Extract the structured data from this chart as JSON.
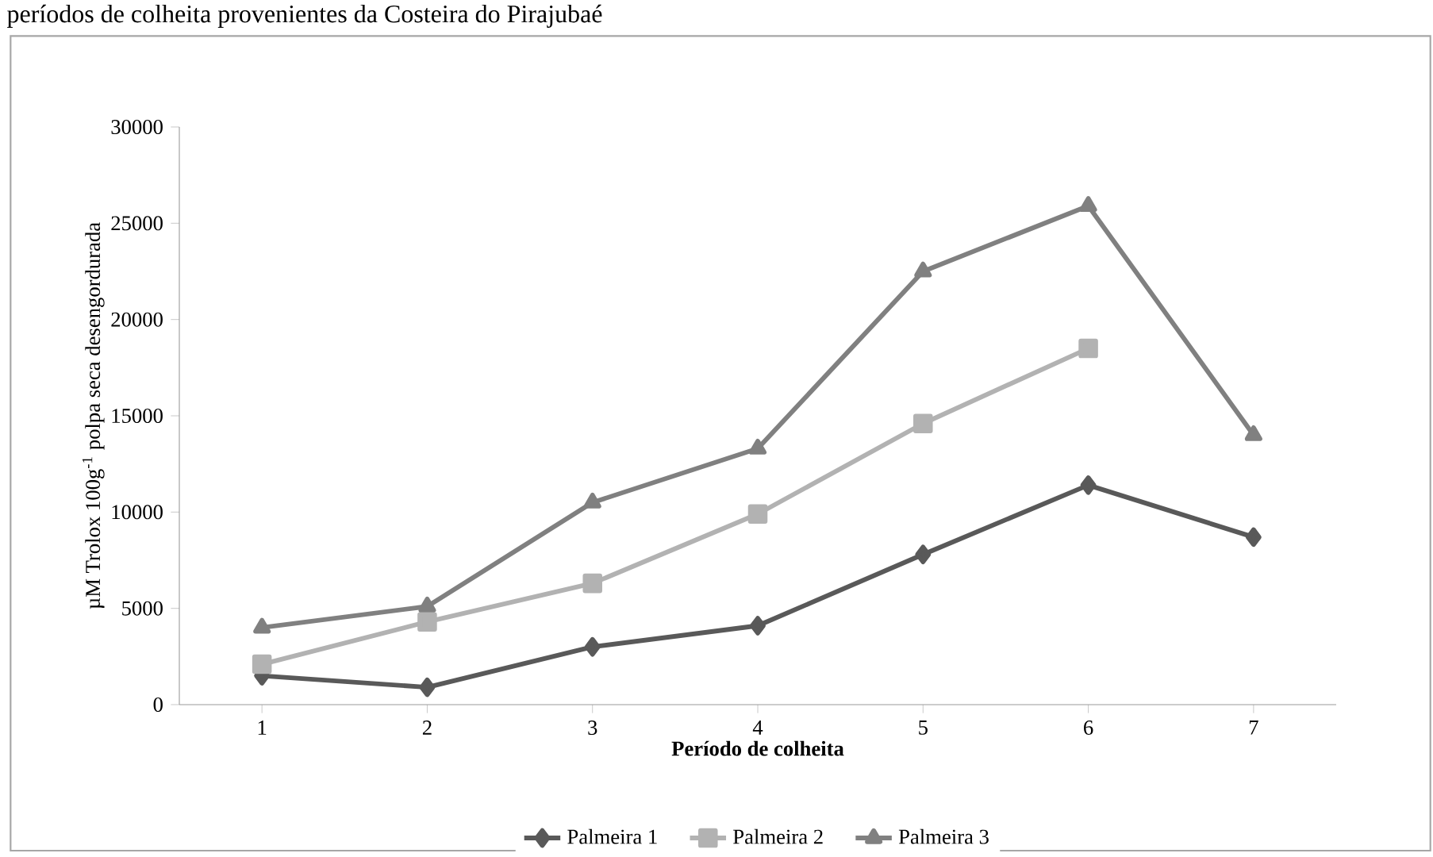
{
  "chart_data": {
    "type": "line",
    "title": "períodos de colheita provenientes da Costeira do Pirajubaé",
    "xlabel": "Período de colheita",
    "ylabel": "µM Trolox 100g$^{-1}$ polpa seca desengordurada",
    "categories": [
      "1",
      "2",
      "3",
      "4",
      "5",
      "6",
      "7"
    ],
    "ylim": [
      0,
      30000
    ],
    "yticks": [
      0,
      5000,
      10000,
      15000,
      20000,
      25000,
      30000
    ],
    "legend": "bottom",
    "line_style": "solid",
    "series": [
      {
        "name": "Palmeira 1",
        "color": "#595959",
        "marker": "diamond",
        "values": [
          1500,
          900,
          3000,
          4100,
          7800,
          11400,
          8700
        ]
      },
      {
        "name": "Palmeira 2",
        "color": "#b2b2b2",
        "marker": "square",
        "values": [
          2100,
          4300,
          6300,
          9900,
          14600,
          18500,
          null
        ]
      },
      {
        "name": "Palmeira 3",
        "color": "#808080",
        "marker": "triangle",
        "values": [
          4000,
          5100,
          10500,
          13300,
          22500,
          25900,
          14000
        ]
      }
    ]
  }
}
